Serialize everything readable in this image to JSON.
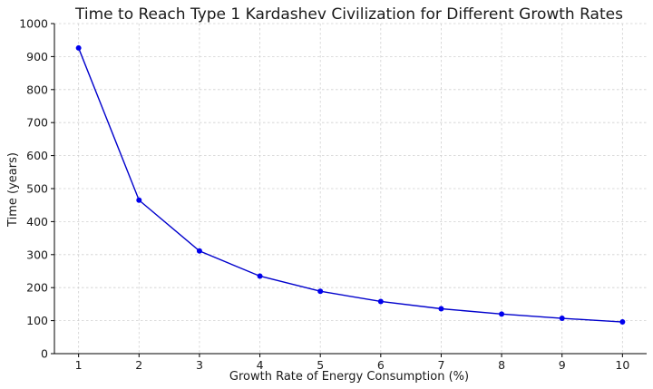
{
  "chart_data": {
    "type": "line",
    "title": "Time to Reach Type 1 Kardashev Civilization for Different Growth Rates",
    "xlabel": "Growth Rate of Energy Consumption (%)",
    "ylabel": "Time (years)",
    "x": [
      1,
      2,
      3,
      4,
      5,
      6,
      7,
      8,
      9,
      10
    ],
    "series": [
      {
        "values": [
          926,
          465,
          311,
          235,
          189,
          158,
          136,
          120,
          107,
          96
        ]
      }
    ],
    "xlim": [
      0.6,
      10.4
    ],
    "ylim": [
      0,
      1000
    ],
    "xticks": [
      "1",
      "2",
      "3",
      "4",
      "5",
      "6",
      "7",
      "8",
      "9",
      "10"
    ],
    "yticks": [
      "0",
      "100",
      "200",
      "300",
      "400",
      "500",
      "600",
      "700",
      "800",
      "900",
      "1000"
    ],
    "grid": true,
    "colors": {
      "line": "#0000cc",
      "marker": "#0000ee",
      "grid": "#d0d0d0",
      "axes": "#000000"
    }
  }
}
